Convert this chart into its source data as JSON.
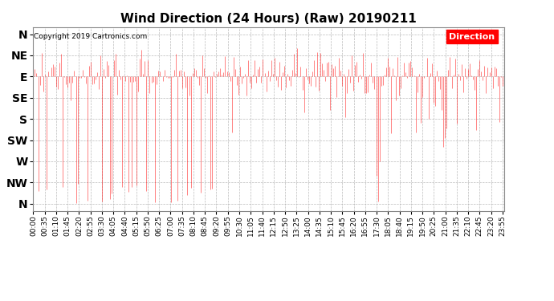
{
  "title": "Wind Direction (24 Hours) (Raw) 20190211",
  "copyright": "Copyright 2019 Cartronics.com",
  "legend_label": "Direction",
  "legend_bg": "#FF0000",
  "legend_text_color": "#FFFFFF",
  "line_color": "#FF0000",
  "background_color": "#FFFFFF",
  "plot_bg_color": "#FFFFFF",
  "grid_color": "#AAAAAA",
  "ytick_labels": [
    "N",
    "NW",
    "W",
    "SW",
    "S",
    "SE",
    "E",
    "NE",
    "N"
  ],
  "ytick_values": [
    360,
    315,
    270,
    225,
    180,
    135,
    90,
    45,
    0
  ],
  "ylim": [
    -15,
    375
  ],
  "title_fontsize": 11,
  "tick_fontsize": 6.5,
  "ylabel_fontsize": 10,
  "num_points": 288,
  "xtick_interval_min": 35
}
